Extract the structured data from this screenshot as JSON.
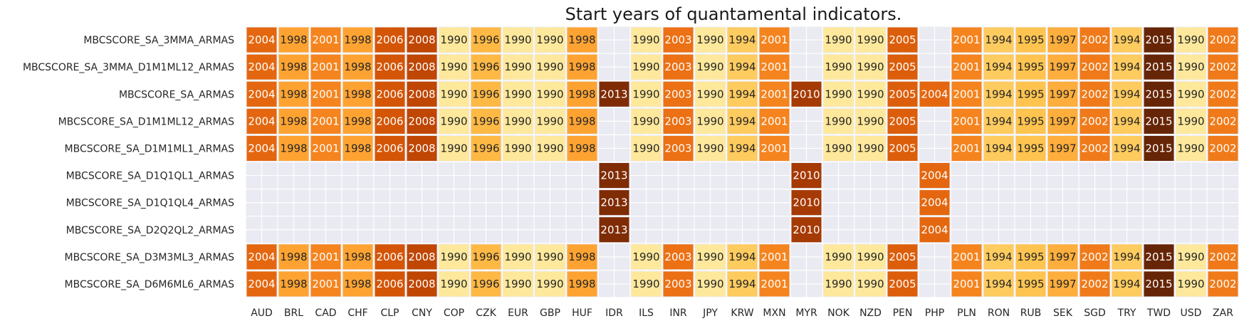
{
  "chart_data": {
    "type": "heatmap",
    "title": "Start years of quantamental indicators.",
    "rows": [
      "MBCSCORE_SA_3MMA_ARMAS",
      "MBCSCORE_SA_3MMA_D1M1ML12_ARMAS",
      "MBCSCORE_SA_ARMAS",
      "MBCSCORE_SA_D1M1ML12_ARMAS",
      "MBCSCORE_SA_D1M1ML1_ARMAS",
      "MBCSCORE_SA_D1Q1QL1_ARMAS",
      "MBCSCORE_SA_D1Q1QL4_ARMAS",
      "MBCSCORE_SA_D2Q2QL2_ARMAS",
      "MBCSCORE_SA_D3M3ML3_ARMAS",
      "MBCSCORE_SA_D6M6ML6_ARMAS"
    ],
    "columns": [
      "AUD",
      "BRL",
      "CAD",
      "CHF",
      "CLP",
      "CNY",
      "COP",
      "CZK",
      "EUR",
      "GBP",
      "HUF",
      "IDR",
      "ILS",
      "INR",
      "JPY",
      "KRW",
      "MXN",
      "MYR",
      "NOK",
      "NZD",
      "PEN",
      "PHP",
      "PLN",
      "RON",
      "RUB",
      "SEK",
      "SGD",
      "TRY",
      "TWD",
      "USD",
      "ZAR"
    ],
    "values": [
      [
        2004,
        1998,
        2001,
        1998,
        2006,
        2008,
        1990,
        1996,
        1990,
        1990,
        1998,
        null,
        1990,
        2003,
        1990,
        1994,
        2001,
        null,
        1990,
        1990,
        2005,
        null,
        2001,
        1994,
        1995,
        1997,
        2002,
        1994,
        2015,
        1990,
        2002
      ],
      [
        2004,
        1998,
        2001,
        1998,
        2006,
        2008,
        1990,
        1996,
        1990,
        1990,
        1998,
        null,
        1990,
        2003,
        1990,
        1994,
        2001,
        null,
        1990,
        1990,
        2005,
        null,
        2001,
        1994,
        1995,
        1997,
        2002,
        1994,
        2015,
        1990,
        2002
      ],
      [
        2004,
        1998,
        2001,
        1998,
        2006,
        2008,
        1990,
        1996,
        1990,
        1990,
        1998,
        2013,
        1990,
        2003,
        1990,
        1994,
        2001,
        2010,
        1990,
        1990,
        2005,
        2004,
        2001,
        1994,
        1995,
        1997,
        2002,
        1994,
        2015,
        1990,
        2002
      ],
      [
        2004,
        1998,
        2001,
        1998,
        2006,
        2008,
        1990,
        1996,
        1990,
        1990,
        1998,
        null,
        1990,
        2003,
        1990,
        1994,
        2001,
        null,
        1990,
        1990,
        2005,
        null,
        2001,
        1994,
        1995,
        1997,
        2002,
        1994,
        2015,
        1990,
        2002
      ],
      [
        2004,
        1998,
        2001,
        1998,
        2006,
        2008,
        1990,
        1996,
        1990,
        1990,
        1998,
        null,
        1990,
        2003,
        1990,
        1994,
        2001,
        null,
        1990,
        1990,
        2005,
        null,
        2001,
        1994,
        1995,
        1997,
        2002,
        1994,
        2015,
        1990,
        2002
      ],
      [
        null,
        null,
        null,
        null,
        null,
        null,
        null,
        null,
        null,
        null,
        null,
        2013,
        null,
        null,
        null,
        null,
        null,
        2010,
        null,
        null,
        null,
        2004,
        null,
        null,
        null,
        null,
        null,
        null,
        null,
        null,
        null
      ],
      [
        null,
        null,
        null,
        null,
        null,
        null,
        null,
        null,
        null,
        null,
        null,
        2013,
        null,
        null,
        null,
        null,
        null,
        2010,
        null,
        null,
        null,
        2004,
        null,
        null,
        null,
        null,
        null,
        null,
        null,
        null,
        null
      ],
      [
        null,
        null,
        null,
        null,
        null,
        null,
        null,
        null,
        null,
        null,
        null,
        2013,
        null,
        null,
        null,
        null,
        null,
        2010,
        null,
        null,
        null,
        2004,
        null,
        null,
        null,
        null,
        null,
        null,
        null,
        null,
        null
      ],
      [
        2004,
        1998,
        2001,
        1998,
        2006,
        2008,
        1990,
        1996,
        1990,
        1990,
        1998,
        null,
        1990,
        2003,
        1990,
        1994,
        2001,
        null,
        1990,
        1990,
        2005,
        null,
        2001,
        1994,
        1995,
        1997,
        2002,
        1994,
        2015,
        1990,
        2002
      ],
      [
        2004,
        1998,
        2001,
        1998,
        2006,
        2008,
        1990,
        1996,
        1990,
        1990,
        1998,
        null,
        1990,
        2003,
        1990,
        1994,
        2001,
        null,
        1990,
        1990,
        2005,
        null,
        2001,
        1994,
        1995,
        1997,
        2002,
        1994,
        2015,
        1990,
        2002
      ]
    ],
    "colormap": "YlOrBr",
    "value_range": [
      1990,
      2015
    ],
    "background_color": "#eaeaf2",
    "grid": true,
    "legend": "none"
  }
}
